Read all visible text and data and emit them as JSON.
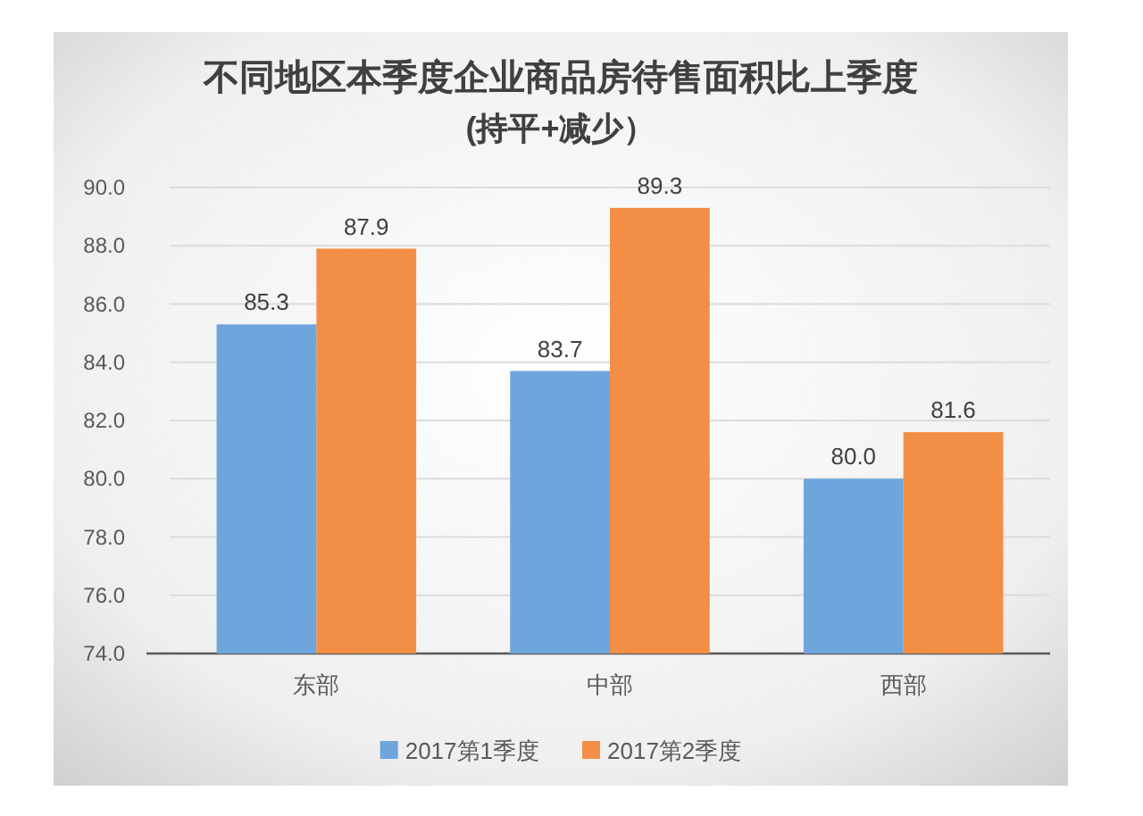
{
  "chart_data": {
    "type": "bar",
    "title": "不同地区本季度企业商品房待售面积比上季度",
    "subtitle": "(持平+减少）",
    "categories": [
      "东部",
      "中部",
      "西部"
    ],
    "series": [
      {
        "name": "2017第1季度",
        "color": "#6fa5dd",
        "values": [
          85.3,
          83.7,
          80.0
        ],
        "value_labels": [
          "85.3",
          "83.7",
          "80.0"
        ]
      },
      {
        "name": "2017第2季度",
        "color": "#f28e45",
        "values": [
          87.9,
          89.3,
          81.6
        ],
        "value_labels": [
          "87.9",
          "89.3",
          "81.6"
        ]
      }
    ],
    "ylim": [
      74,
      90
    ],
    "yticks": [
      {
        "value": 74,
        "label": "74.0"
      },
      {
        "value": 76,
        "label": "76.0"
      },
      {
        "value": 78,
        "label": "78.0"
      },
      {
        "value": 80,
        "label": "80.0"
      },
      {
        "value": 82,
        "label": "82.0"
      },
      {
        "value": 84,
        "label": "84.0"
      },
      {
        "value": 86,
        "label": "86.0"
      },
      {
        "value": 88,
        "label": "88.0"
      },
      {
        "value": 90,
        "label": "90.0"
      }
    ],
    "grid": "y",
    "legend": "bottom"
  }
}
